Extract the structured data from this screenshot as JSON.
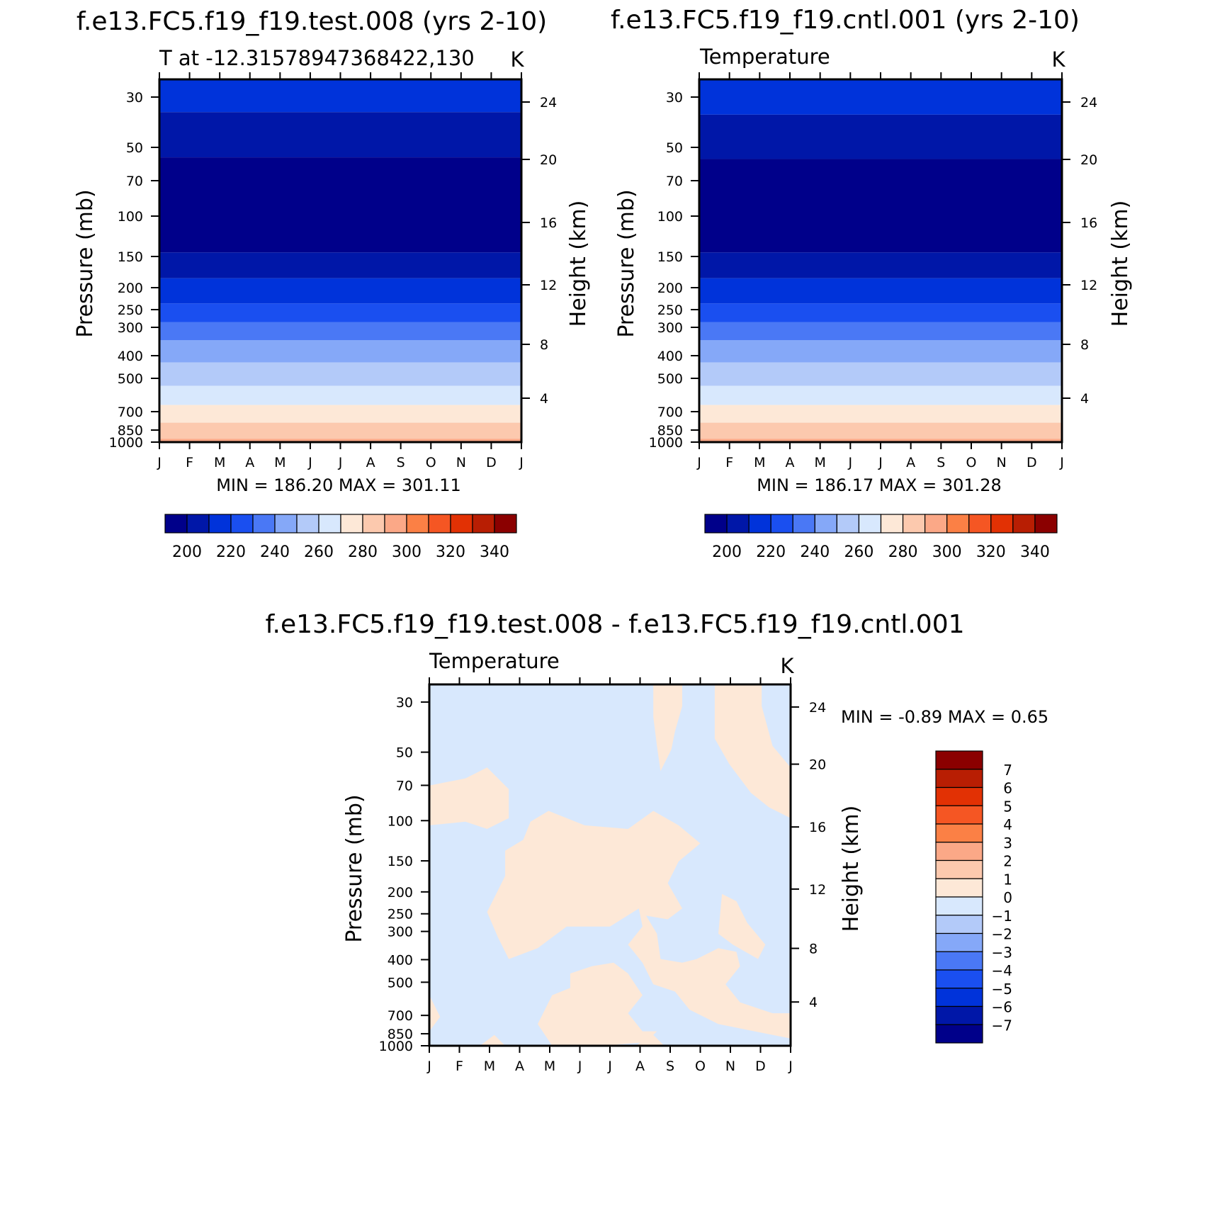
{
  "chart_data": [
    {
      "type": "heatmap",
      "title": "f.e13.FC5.f19_f19.test.008 (yrs 2-10)",
      "subtitle": "T at -12.31578947368422,130",
      "units": "K",
      "ylabel": "Pressure (mb)",
      "y2label": "Height (km)",
      "stats": "MIN = 186.20 MAX = 301.11",
      "x": [
        "J",
        "F",
        "M",
        "A",
        "M",
        "J",
        "J",
        "A",
        "S",
        "O",
        "N",
        "D",
        "J"
      ],
      "pressure_ticks": [
        30,
        50,
        70,
        100,
        150,
        200,
        250,
        300,
        400,
        500,
        700,
        850,
        1000
      ],
      "height_ticks": [
        4,
        8,
        12,
        16,
        20,
        24
      ],
      "colorbar_labels": [
        "200",
        "220",
        "240",
        "260",
        "280",
        "300",
        "320",
        "340"
      ],
      "colorbar_colors": [
        "#00008a",
        "#0017a8",
        "#0033da",
        "#1a4ff0",
        "#4a78f5",
        "#85a8f8",
        "#b3caf9",
        "#d8e8fd",
        "#fde8d7",
        "#fcc9ae",
        "#fba887",
        "#fb8045",
        "#f55623",
        "#e23104",
        "#b81e03",
        "#8b0000"
      ],
      "bands": [
        {
          "top": 20,
          "bottom": 36,
          "color": "#0033da"
        },
        {
          "top": 36,
          "bottom": 56,
          "color": "#0017a8"
        },
        {
          "top": 56,
          "bottom": 145,
          "color": "#00008a"
        },
        {
          "top": 145,
          "bottom": 185,
          "color": "#0017a8"
        },
        {
          "top": 185,
          "bottom": 236,
          "color": "#0033da"
        },
        {
          "top": 236,
          "bottom": 285,
          "color": "#1a4ff0"
        },
        {
          "top": 285,
          "bottom": 345,
          "color": "#4a78f5"
        },
        {
          "top": 345,
          "bottom": 430,
          "color": "#85a8f8"
        },
        {
          "top": 430,
          "bottom": 545,
          "color": "#b3caf9"
        },
        {
          "top": 545,
          "bottom": 660,
          "color": "#d8e8fd"
        },
        {
          "top": 660,
          "bottom": 790,
          "color": "#fde8d7"
        },
        {
          "top": 790,
          "bottom": 960,
          "color": "#fcc9ae"
        },
        {
          "top": 960,
          "bottom": 1000,
          "color": "#fba887"
        }
      ]
    },
    {
      "type": "heatmap",
      "title": "f.e13.FC5.f19_f19.cntl.001 (yrs 2-10)",
      "subtitle": "Temperature",
      "units": "K",
      "ylabel": "Pressure (mb)",
      "y2label": "Height (km)",
      "stats": "MIN = 186.17 MAX = 301.28",
      "x": [
        "J",
        "F",
        "M",
        "A",
        "M",
        "J",
        "J",
        "A",
        "S",
        "O",
        "N",
        "D",
        "J"
      ],
      "pressure_ticks": [
        30,
        50,
        70,
        100,
        150,
        200,
        250,
        300,
        400,
        500,
        700,
        850,
        1000
      ],
      "height_ticks": [
        4,
        8,
        12,
        16,
        20,
        24
      ],
      "colorbar_labels": [
        "200",
        "220",
        "240",
        "260",
        "280",
        "300",
        "320",
        "340"
      ],
      "colorbar_colors": [
        "#00008a",
        "#0017a8",
        "#0033da",
        "#1a4ff0",
        "#4a78f5",
        "#85a8f8",
        "#b3caf9",
        "#d8e8fd",
        "#fde8d7",
        "#fcc9ae",
        "#fba887",
        "#fb8045",
        "#f55623",
        "#e23104",
        "#b81e03",
        "#8b0000"
      ],
      "bands": [
        {
          "top": 20,
          "bottom": 37,
          "color": "#0033da"
        },
        {
          "top": 37,
          "bottom": 57,
          "color": "#0017a8"
        },
        {
          "top": 57,
          "bottom": 145,
          "color": "#00008a"
        },
        {
          "top": 145,
          "bottom": 185,
          "color": "#0017a8"
        },
        {
          "top": 185,
          "bottom": 236,
          "color": "#0033da"
        },
        {
          "top": 236,
          "bottom": 285,
          "color": "#1a4ff0"
        },
        {
          "top": 285,
          "bottom": 345,
          "color": "#4a78f5"
        },
        {
          "top": 345,
          "bottom": 430,
          "color": "#85a8f8"
        },
        {
          "top": 430,
          "bottom": 545,
          "color": "#b3caf9"
        },
        {
          "top": 545,
          "bottom": 660,
          "color": "#d8e8fd"
        },
        {
          "top": 660,
          "bottom": 790,
          "color": "#fde8d7"
        },
        {
          "top": 790,
          "bottom": 960,
          "color": "#fcc9ae"
        },
        {
          "top": 960,
          "bottom": 1000,
          "color": "#fba887"
        }
      ]
    },
    {
      "type": "heatmap",
      "title": "f.e13.FC5.f19_f19.test.008 - f.e13.FC5.f19_f19.cntl.001",
      "subtitle": "Temperature",
      "units": "K",
      "ylabel": "Pressure (mb)",
      "y2label": "Height (km)",
      "stats": "MIN = -0.89 MAX = 0.65",
      "x": [
        "J",
        "F",
        "M",
        "A",
        "M",
        "J",
        "J",
        "A",
        "S",
        "O",
        "N",
        "D",
        "J"
      ],
      "pressure_ticks": [
        30,
        50,
        70,
        100,
        150,
        200,
        250,
        300,
        400,
        500,
        700,
        850,
        1000
      ],
      "height_ticks": [
        4,
        8,
        12,
        16,
        20,
        24
      ],
      "colorbar_labels": [
        "7",
        "6",
        "5",
        "4",
        "3",
        "2",
        "1",
        "0",
        "-1",
        "-2",
        "-3",
        "-4",
        "-5",
        "-6",
        "-7"
      ],
      "colorbar_colors": [
        "#8b0000",
        "#b81e03",
        "#e23104",
        "#f55623",
        "#fb8045",
        "#fba887",
        "#fcc9ae",
        "#fde8d7",
        "#d8e8fd",
        "#b3caf9",
        "#85a8f8",
        "#4a78f5",
        "#1a4ff0",
        "#0033da",
        "#0017a8",
        "#00008a"
      ],
      "background_color": "#d8e8fd",
      "positive_color": "#fde8d7"
    }
  ]
}
